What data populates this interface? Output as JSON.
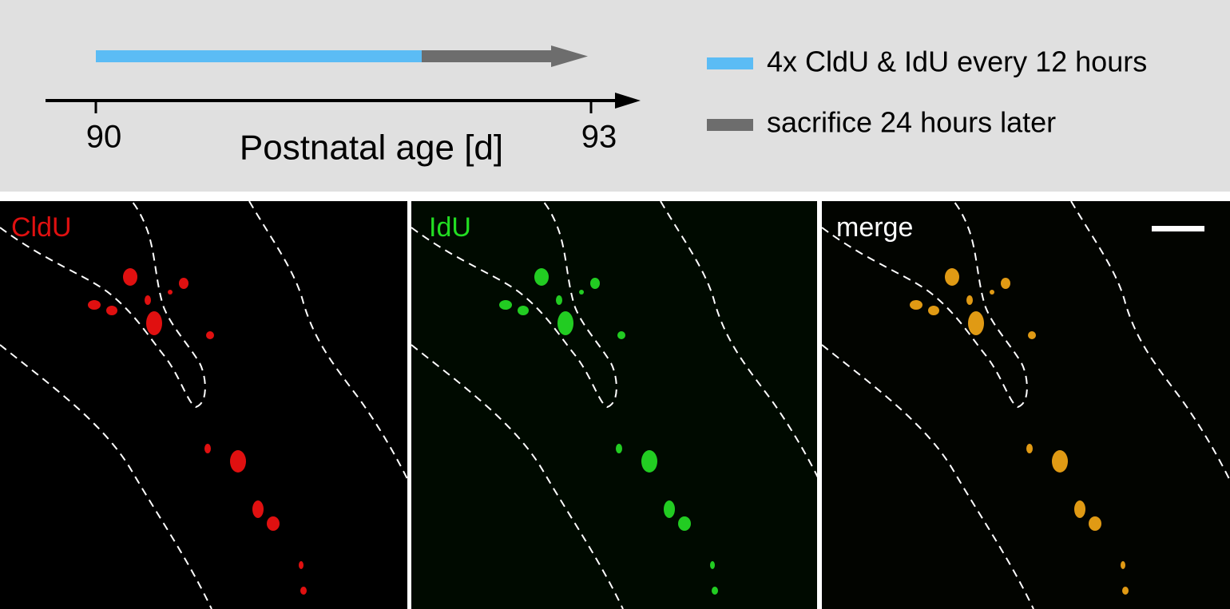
{
  "timeline": {
    "start_label": "90",
    "end_label": "93",
    "axis_label": "Postnatal age [d]"
  },
  "legend": {
    "items": [
      {
        "label": "4x CldU & IdU every 12 hours"
      },
      {
        "label": "sacrifice 24 hours later"
      }
    ]
  },
  "panels": [
    {
      "label": "CldU"
    },
    {
      "label": "IdU"
    },
    {
      "label": "merge"
    }
  ]
}
